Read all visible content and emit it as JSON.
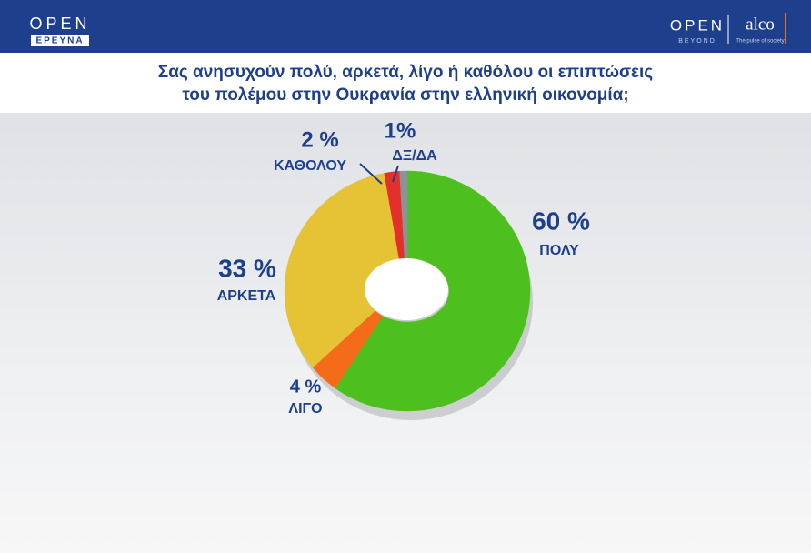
{
  "header": {
    "logo_left_top": "OPEN",
    "logo_left_bottom": "ΕΡΕΥΝΑ",
    "logo_right_top": "OPEN",
    "logo_right_bottom": "BEYOND",
    "brand": "alco",
    "brand_tagline": "The pulse of society"
  },
  "chart_data": {
    "type": "pie",
    "donut": true,
    "title_lines": [
      "Σας ανησυχούν πολύ, αρκετά, λίγο ή καθόλου οι επιπτώσεις",
      "του πολέμου στην Ουκρανία στην ελληνική οικονομία;"
    ],
    "categories": [
      "ΠΟΛΥ",
      "ΛΙΓΟ",
      "ΑΡΚΕΤΑ",
      "ΚΑΘΟΛΟΥ",
      "ΔΞ/ΔΑ"
    ],
    "values": [
      60,
      4,
      33,
      2,
      1
    ],
    "value_labels": [
      "60 %",
      "4 %",
      "33 %",
      "2 %",
      "1%"
    ],
    "colors": [
      "#4dbf1e",
      "#f46b1a",
      "#e6c235",
      "#e3302a",
      "#8c929c"
    ]
  }
}
